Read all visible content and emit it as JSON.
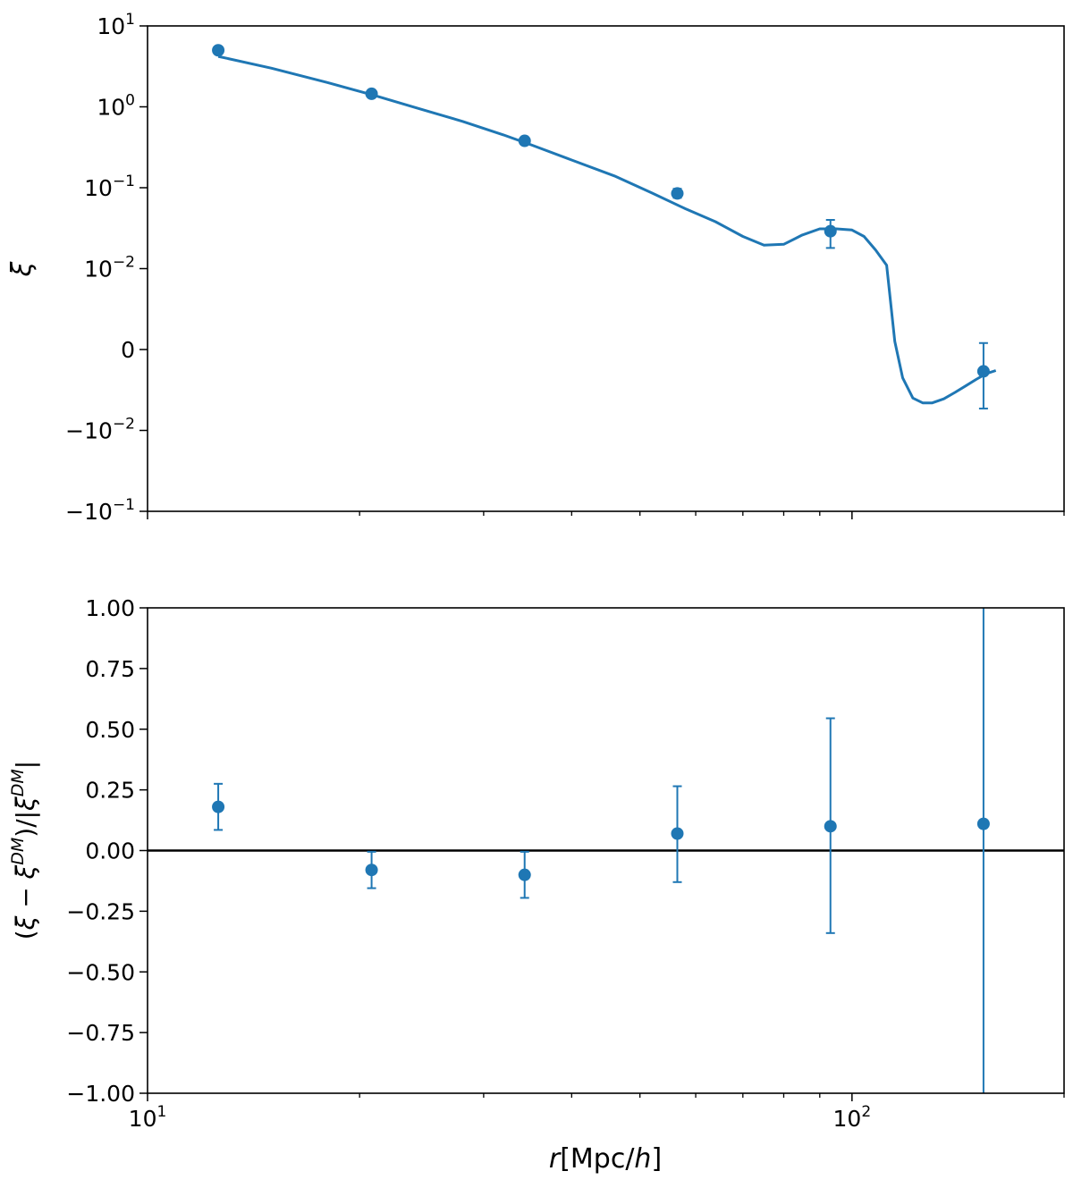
{
  "chart_data": [
    {
      "type": "line",
      "panel": "top",
      "title": "",
      "xlabel": "",
      "ylabel": "ξ",
      "xscale": "log",
      "yscale": "symlog",
      "symlog_linthresh": 0.01,
      "xlim": [
        10,
        200
      ],
      "ylim": [
        -0.1,
        10
      ],
      "grid": false,
      "legend": "none",
      "yticks": [
        {
          "value": 10,
          "base": "10",
          "exp": "1"
        },
        {
          "value": 1,
          "base": "10",
          "exp": "0"
        },
        {
          "value": 0.1,
          "base": "10",
          "exp": "−1"
        },
        {
          "value": 0.01,
          "base": "10",
          "exp": "−2"
        },
        {
          "value": 0,
          "base": "0",
          "exp": ""
        },
        {
          "value": -0.01,
          "base": "−10",
          "exp": "−2"
        },
        {
          "value": -0.1,
          "base": "−10",
          "exp": "−1"
        }
      ],
      "series": [
        {
          "kind": "curve",
          "color": "#1f77b4",
          "x": [
            12.6,
            15,
            18,
            21,
            24,
            28,
            32,
            35,
            40,
            46,
            52,
            58,
            64,
            70,
            75,
            80,
            85,
            90,
            95,
            100,
            104,
            108,
            112,
            115,
            118,
            122,
            126,
            130,
            135,
            140,
            145,
            150,
            155,
            160
          ],
          "y": [
            4.2,
            3.0,
            2.0,
            1.38,
            0.98,
            0.66,
            0.45,
            0.34,
            0.22,
            0.14,
            0.086,
            0.055,
            0.038,
            0.025,
            0.0195,
            0.02,
            0.026,
            0.031,
            0.031,
            0.03,
            0.025,
            0.017,
            0.011,
            0.001,
            -0.0035,
            -0.006,
            -0.0066,
            -0.0066,
            -0.0061,
            -0.0053,
            -0.0045,
            -0.0037,
            -0.003,
            -0.0026
          ]
        },
        {
          "kind": "points",
          "color": "#1f77b4",
          "x": [
            12.6,
            20.8,
            34.3,
            56.5,
            93.2,
            153.7
          ],
          "y": [
            5.0,
            1.45,
            0.38,
            0.085,
            0.029,
            -0.0027
          ],
          "yerr_low": [
            5.0,
            1.45,
            0.38,
            0.075,
            0.018,
            -0.0073
          ],
          "yerr_high": [
            5.0,
            1.45,
            0.38,
            0.097,
            0.04,
            0.0008
          ]
        }
      ]
    },
    {
      "type": "scatter",
      "panel": "bottom",
      "title": "",
      "xlabel_base": "r",
      "xlabel_unit": "[Mpc/",
      "xlabel_h": "h",
      "xlabel_close": "]",
      "ylabel_open": "(",
      "ylabel_xi1": "ξ",
      "ylabel_minus": " − ",
      "ylabel_xi2": "ξ",
      "ylabel_sup1": "DM",
      "ylabel_mid": ")/|",
      "ylabel_xi3": "ξ",
      "ylabel_sup2": "DM",
      "ylabel_close": "|",
      "xscale": "log",
      "xlim": [
        10,
        200
      ],
      "ylim": [
        -1.0,
        1.0
      ],
      "grid": false,
      "legend": "none",
      "reference_line": {
        "y": 0.0,
        "color": "#000000"
      },
      "xticks": [
        {
          "value": 10,
          "base": "10",
          "exp": "1"
        },
        {
          "value": 100,
          "base": "10",
          "exp": "2"
        }
      ],
      "yticks": [
        "−1.00",
        "−0.75",
        "−0.50",
        "−0.25",
        "0.00",
        "0.25",
        "0.50",
        "0.75",
        "1.00"
      ],
      "ytick_values": [
        -1.0,
        -0.75,
        -0.5,
        -0.25,
        0.0,
        0.25,
        0.5,
        0.75,
        1.0
      ],
      "series": [
        {
          "kind": "points",
          "color": "#1f77b4",
          "x": [
            12.6,
            20.8,
            34.3,
            56.5,
            93.2,
            153.7
          ],
          "y": [
            0.18,
            -0.08,
            -0.1,
            0.07,
            0.1,
            0.11
          ],
          "yerr_low": [
            0.085,
            -0.155,
            -0.195,
            -0.13,
            -0.34,
            -1.0
          ],
          "yerr_high": [
            0.275,
            -0.005,
            -0.005,
            0.265,
            0.545,
            1.0
          ]
        }
      ]
    }
  ]
}
